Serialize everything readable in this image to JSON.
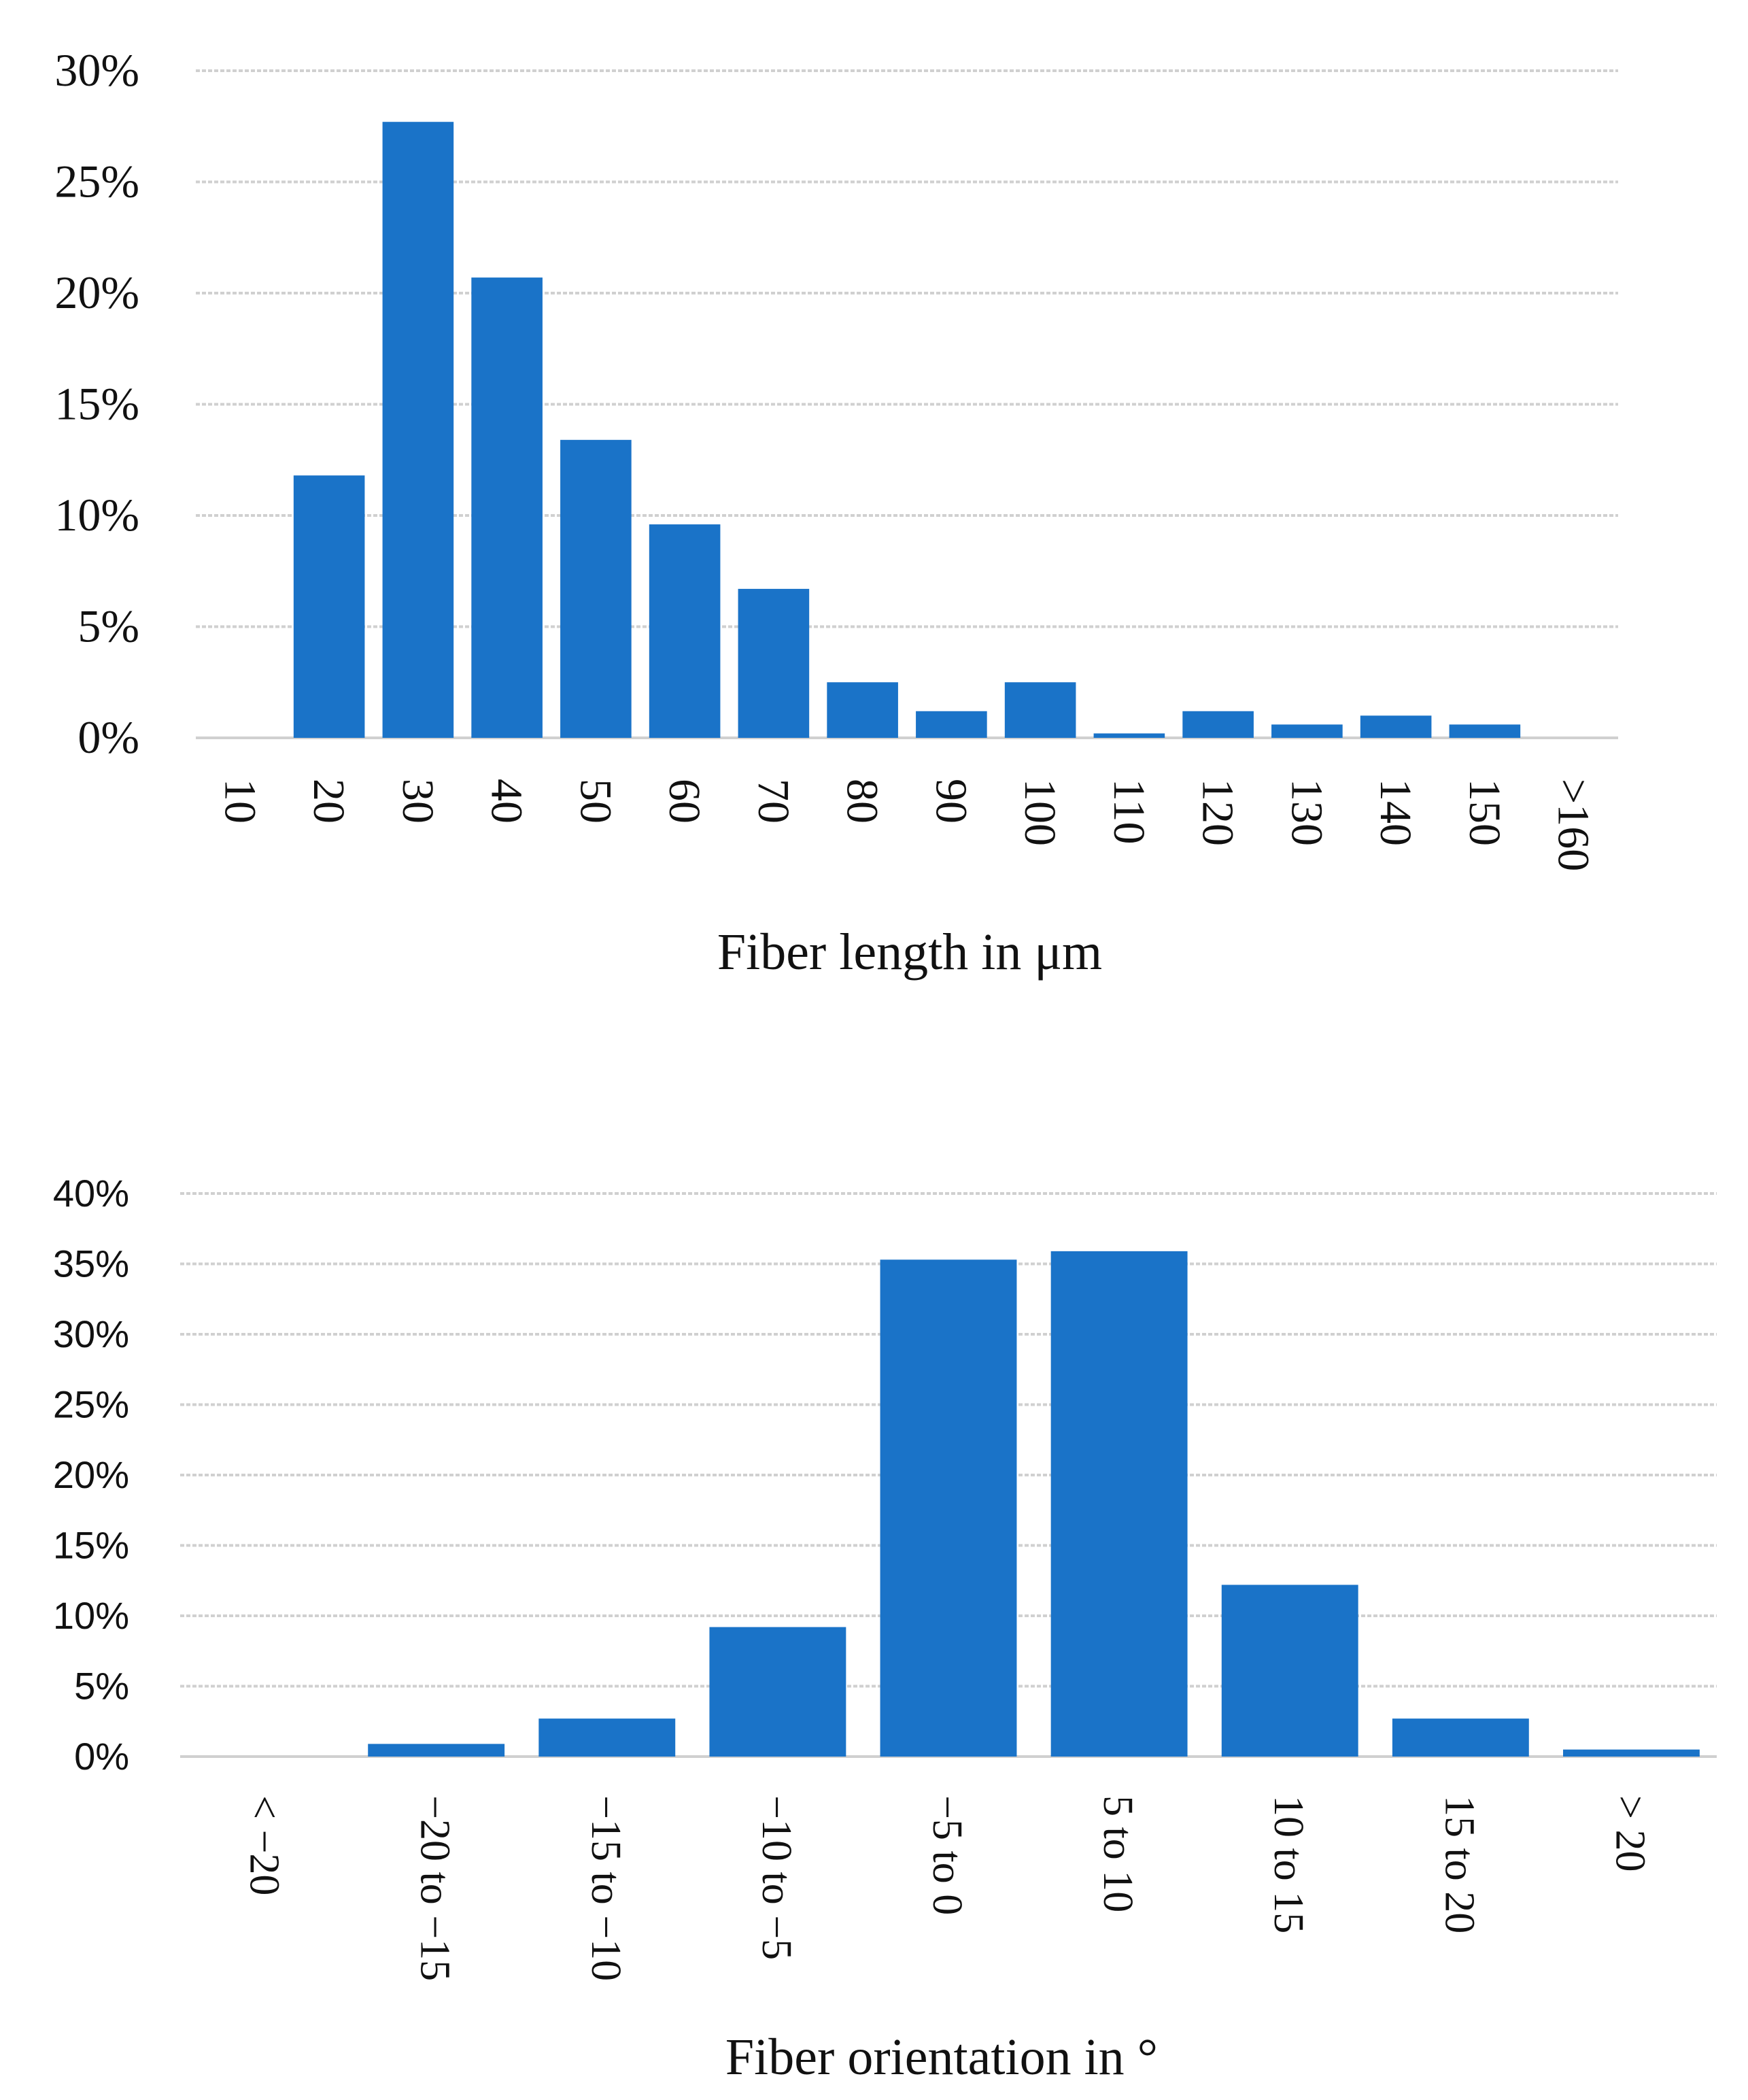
{
  "chart_data": [
    {
      "type": "bar",
      "xlabel": "Fiber length in μm",
      "ylabel": "",
      "title": "",
      "ylim": [
        0,
        30
      ],
      "yticks": [
        "0%",
        "5%",
        "10%",
        "15%",
        "20%",
        "25%",
        "30%"
      ],
      "categories": [
        "10",
        "20",
        "30",
        "40",
        "50",
        "60",
        "70",
        "80",
        "90",
        "100",
        "110",
        "120",
        "130",
        "140",
        "150",
        ">160"
      ],
      "values": [
        0,
        11.8,
        27.7,
        20.7,
        13.4,
        9.6,
        6.7,
        2.5,
        1.2,
        2.5,
        0.2,
        1.2,
        0.6,
        1.0,
        0.6,
        0
      ],
      "color": "#1a73c8",
      "grid": true
    },
    {
      "type": "bar",
      "xlabel": "Fiber orientation in °",
      "ylabel": "",
      "title": "",
      "ylim": [
        0,
        40
      ],
      "yticks": [
        "0%",
        "5%",
        "10%",
        "15%",
        "20%",
        "25%",
        "30%",
        "35%",
        "40%"
      ],
      "categories": [
        "< −20",
        "−20 to −15",
        "−15 to −10",
        "−10 to −5",
        "−5 to 0",
        "5 to 10",
        "10 to 15",
        "15 to 20",
        "> 20"
      ],
      "values": [
        0,
        0.9,
        2.7,
        9.2,
        35.3,
        35.9,
        12.2,
        2.7,
        0.5
      ],
      "color": "#1a73c8",
      "grid": true
    }
  ]
}
